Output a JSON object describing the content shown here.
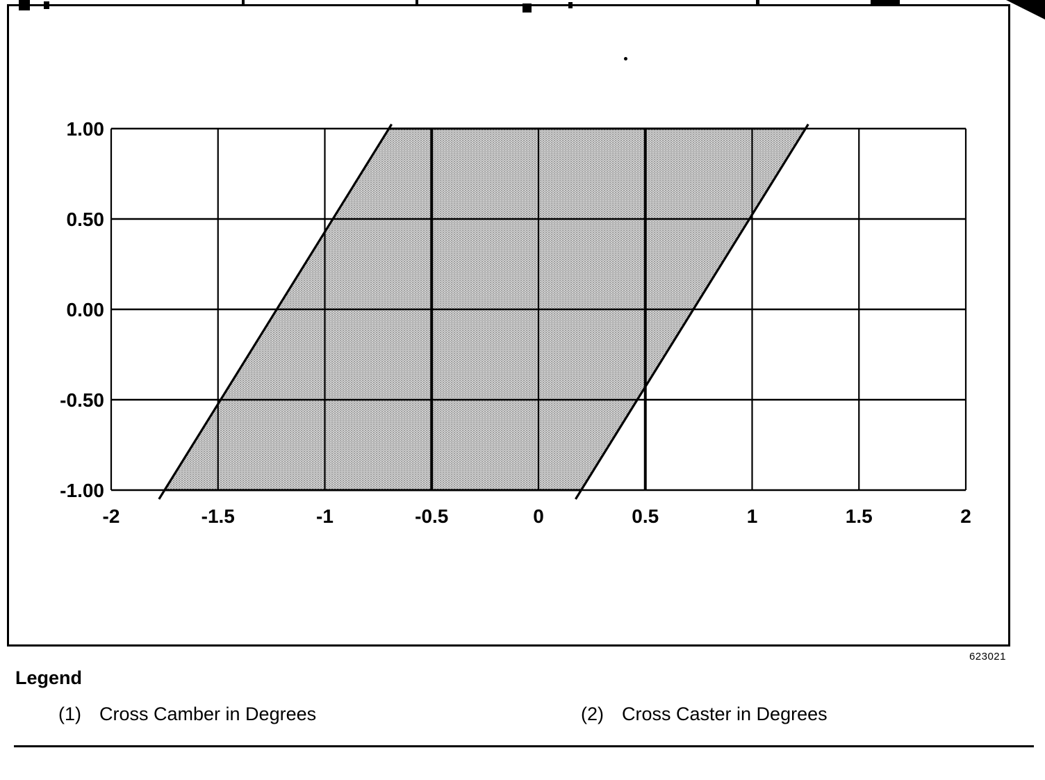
{
  "figure": {
    "number": "623021"
  },
  "legend": {
    "title": "Legend",
    "items": [
      {
        "marker": "(1)",
        "label": "Cross Camber in Degrees"
      },
      {
        "marker": "(2)",
        "label": "Cross Caster in Degrees"
      }
    ]
  },
  "chart_data": {
    "type": "area",
    "title": "",
    "xlabel": "(2) Cross Caster in Degrees",
    "ylabel": "(1) Cross Camber in Degrees",
    "xlim": [
      -2,
      2
    ],
    "ylim": [
      -1,
      1
    ],
    "x_ticks": [
      "-2",
      "-1.5",
      "-1",
      "-0.5",
      "0",
      "0.5",
      "1",
      "1.5",
      "2"
    ],
    "y_ticks": [
      "1.00",
      "0.50",
      "0.00",
      "-0.50",
      "-1.00"
    ],
    "grid": true,
    "legend_position": "below",
    "region": {
      "name": "acceptable-alignment-region",
      "shape": "parallelogram",
      "fill": "halftone-gray",
      "vertices": [
        [
          -1.75,
          -1.0
        ],
        [
          -0.7,
          1.0
        ],
        [
          1.25,
          1.0
        ],
        [
          0.2,
          -1.0
        ]
      ]
    }
  }
}
